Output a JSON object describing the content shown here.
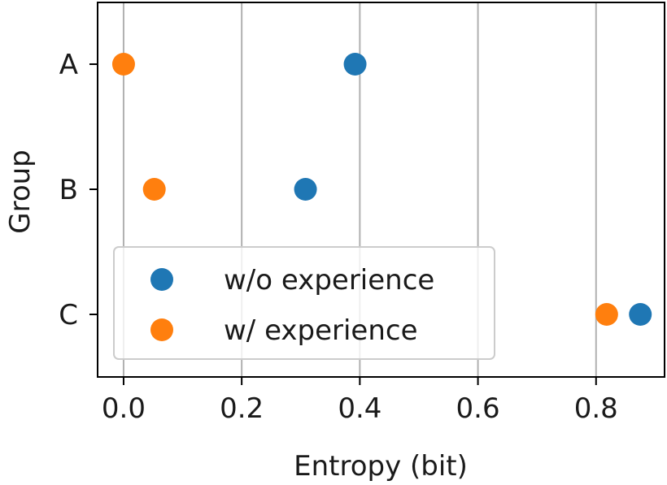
{
  "chart_data": {
    "type": "scatter",
    "title": "",
    "xlabel": "Entropy (bit)",
    "ylabel": "Group",
    "categories": [
      "A",
      "B",
      "C"
    ],
    "xlim": [
      -0.044,
      0.916
    ],
    "xticks": [
      "0.0",
      "0.2",
      "0.4",
      "0.6",
      "0.8"
    ],
    "xtick_values": [
      0.0,
      0.2,
      0.4,
      0.6,
      0.8
    ],
    "grid": "x",
    "legend_position": "bottom-left",
    "series": [
      {
        "name": "w/o experience",
        "color": "#1f77b4",
        "values": [
          0.392,
          0.308,
          0.875
        ]
      },
      {
        "name": "w/ experience",
        "color": "#ff7f0e",
        "values": [
          0.0,
          0.052,
          0.818
        ]
      }
    ]
  }
}
